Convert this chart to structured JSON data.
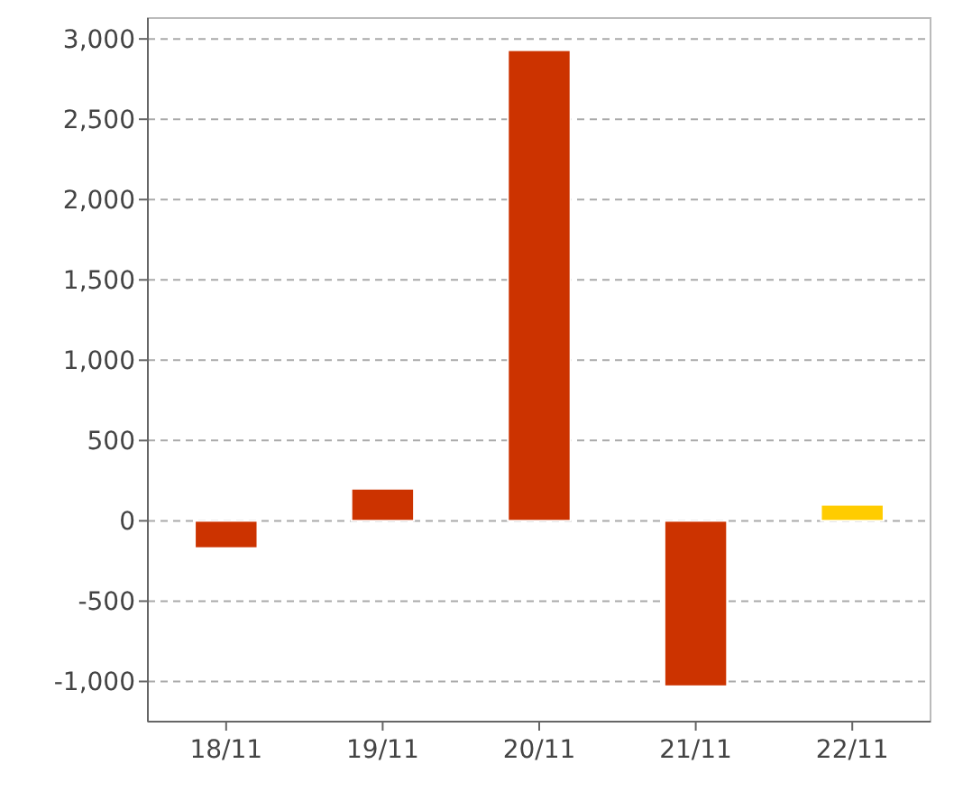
{
  "chart_data": {
    "type": "bar",
    "categories": [
      "18/11",
      "19/11",
      "20/11",
      "21/11",
      "22/11"
    ],
    "values": [
      -170,
      200,
      2930,
      -1030,
      100
    ],
    "colors": [
      "#cc3300",
      "#cc3300",
      "#cc3300",
      "#cc3300",
      "#ffcc00"
    ],
    "ylim": [
      -1250,
      3130
    ],
    "yticks": [
      {
        "value": -1000,
        "label": "-1,000"
      },
      -500,
      0,
      500,
      {
        "value": 1000,
        "label": "1,000"
      },
      {
        "value": 1500,
        "label": "1,500"
      },
      {
        "value": 2000,
        "label": "2,000"
      },
      {
        "value": 2500,
        "label": "2,500"
      },
      {
        "value": 3000,
        "label": "3,000"
      }
    ],
    "grid": "y"
  }
}
